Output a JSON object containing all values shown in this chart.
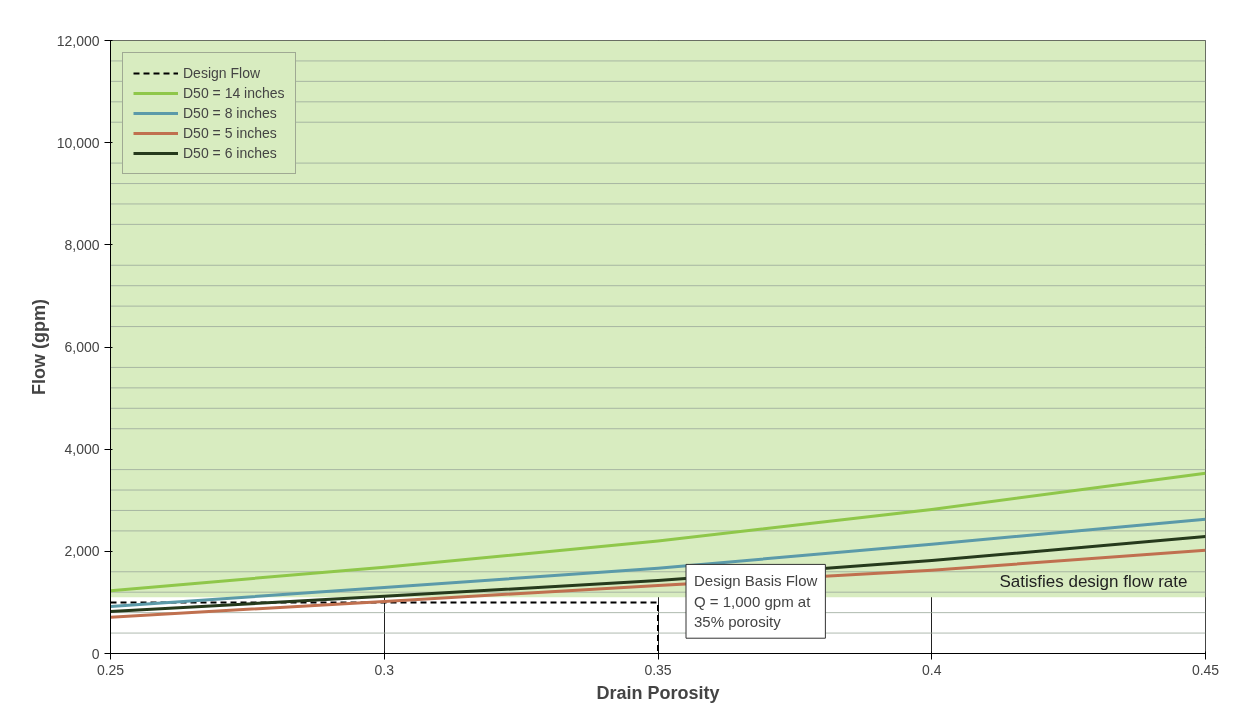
{
  "chart_data": {
    "type": "line",
    "xlabel": "Drain Porosity",
    "ylabel": "Flow (gpm)",
    "xlim": [
      0.25,
      0.45
    ],
    "ylim": [
      0,
      12000
    ],
    "xticks": [
      0.25,
      0.3,
      0.35,
      0.4,
      0.45
    ],
    "yticks": [
      0,
      {
        "value": 400,
        "label": null
      },
      {
        "value": 800,
        "label": null
      },
      {
        "value": 1200,
        "label": null
      },
      {
        "value": 1600,
        "label": null
      },
      {
        "value": 2000,
        "label": "2,000"
      },
      {
        "value": 2400,
        "label": null
      },
      {
        "value": 2800,
        "label": null
      },
      {
        "value": 3200,
        "label": null
      },
      {
        "value": 3600,
        "label": null
      },
      {
        "value": 4000,
        "label": "4,000"
      },
      {
        "value": 4400,
        "label": null
      },
      {
        "value": 4800,
        "label": null
      },
      {
        "value": 5200,
        "label": null
      },
      {
        "value": 5600,
        "label": null
      },
      {
        "value": 6000,
        "label": "6,000"
      },
      {
        "value": 6400,
        "label": null
      },
      {
        "value": 6800,
        "label": null
      },
      {
        "value": 7200,
        "label": null
      },
      {
        "value": 7600,
        "label": null
      },
      {
        "value": 8000,
        "label": "8,000"
      },
      {
        "value": 8400,
        "label": null
      },
      {
        "value": 8800,
        "label": null
      },
      {
        "value": 9200,
        "label": null
      },
      {
        "value": 9600,
        "label": null
      },
      {
        "value": 10000,
        "label": "10,000"
      },
      {
        "value": 10400,
        "label": null
      },
      {
        "value": 10800,
        "label": null
      },
      {
        "value": 11200,
        "label": null
      },
      {
        "value": 11600,
        "label": null
      },
      {
        "value": 12000,
        "label": "12,000"
      }
    ],
    "grid": true,
    "legend": "top left",
    "marker": "none",
    "series": [
      {
        "name": "Design Flow",
        "color": "#000000",
        "line_style": "dashed",
        "x": [
          0.25,
          0.35,
          0.35
        ],
        "values": [
          1000,
          1000,
          0
        ]
      },
      {
        "name": "D50 = 14 inches",
        "color": "#8fc74a",
        "x": [
          0.25,
          0.3,
          0.35,
          0.4,
          0.45
        ],
        "values": [
          1230,
          1690,
          2200,
          2820,
          3530
        ]
      },
      {
        "name": "D50 = 8 inches",
        "color": "#5b9aa9",
        "x": [
          0.25,
          0.3,
          0.35,
          0.4,
          0.45
        ],
        "values": [
          920,
          1290,
          1670,
          2140,
          2630
        ]
      },
      {
        "name": "D50 = 5 inches",
        "color": "#c0704f",
        "x": [
          0.25,
          0.3,
          0.35,
          0.4,
          0.45
        ],
        "values": [
          710,
          1020,
          1330,
          1630,
          2020
        ]
      },
      {
        "name": "D50 = 6 inches",
        "color": "#263a1c",
        "x": [
          0.25,
          0.3,
          0.35,
          0.4,
          0.45
        ],
        "values": [
          820,
          1120,
          1430,
          1820,
          2290
        ]
      }
    ],
    "bands": [
      {
        "axis": "y",
        "from": 1100,
        "to": 12000,
        "label": "Satisfies design flow rate",
        "color": "#d8ecc0"
      }
    ],
    "annotations": [
      {
        "text": "Design Basis Flow\nQ = 1,000 gpm at\n35% porosity",
        "x": 0.35,
        "y": 1000
      }
    ]
  }
}
